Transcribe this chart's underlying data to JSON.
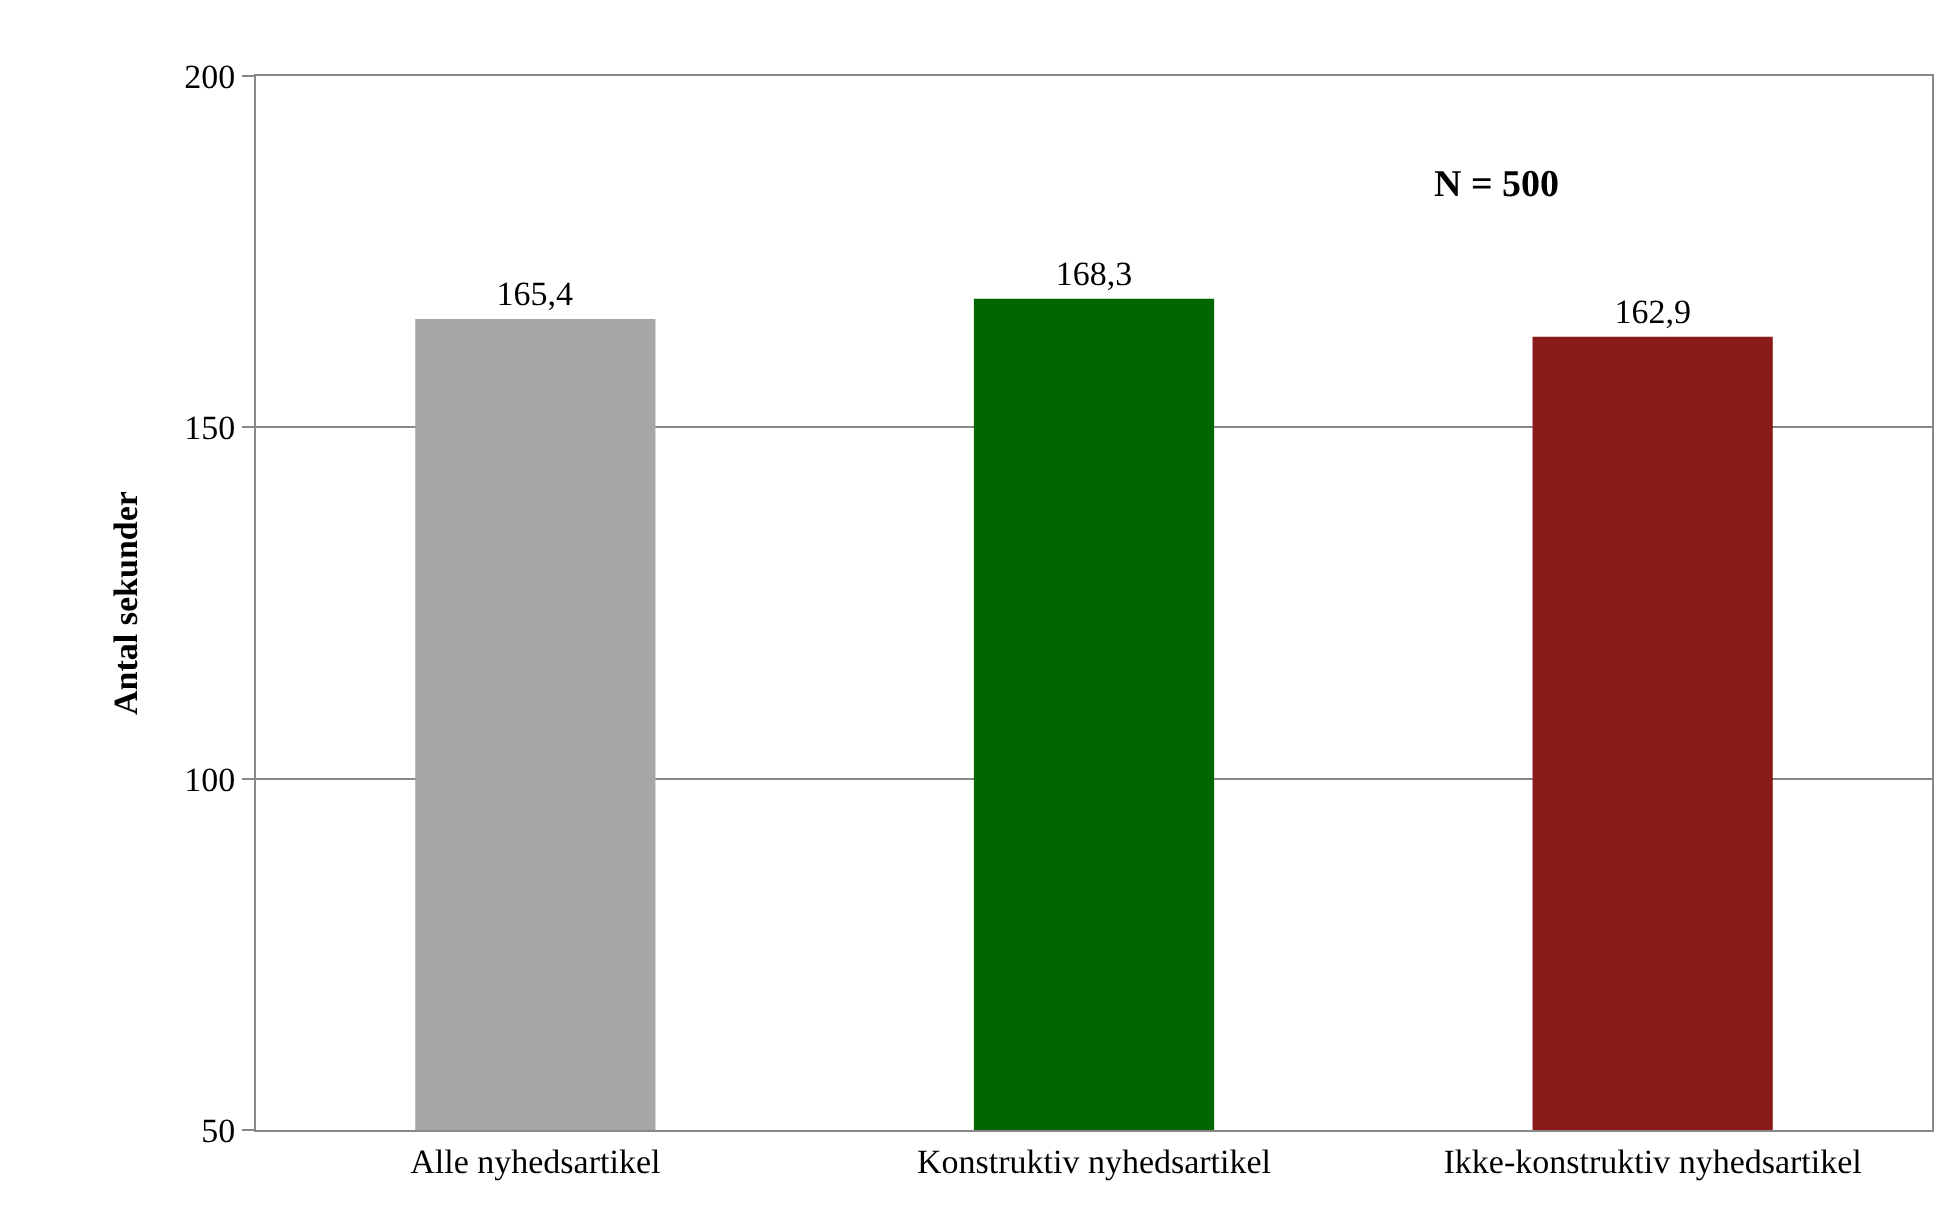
{
  "chart_data": {
    "type": "bar",
    "ylabel": "Antal sekunder",
    "categories": [
      "Alle nyhedsartikel",
      "Konstruktiv nyhedsartikel",
      "Ikke-konstruktiv nyhedsartikel"
    ],
    "values": [
      165.4,
      168.3,
      162.9
    ],
    "colors": [
      "#a6a6a6",
      "#006600",
      "#8b1a1a"
    ],
    "value_labels": [
      "165,4",
      "168,3",
      "162,9"
    ],
    "ylim": [
      50,
      200
    ],
    "yticks": [
      50,
      100,
      150,
      200
    ],
    "grid": "y",
    "annotations": [
      "N = 500"
    ]
  }
}
